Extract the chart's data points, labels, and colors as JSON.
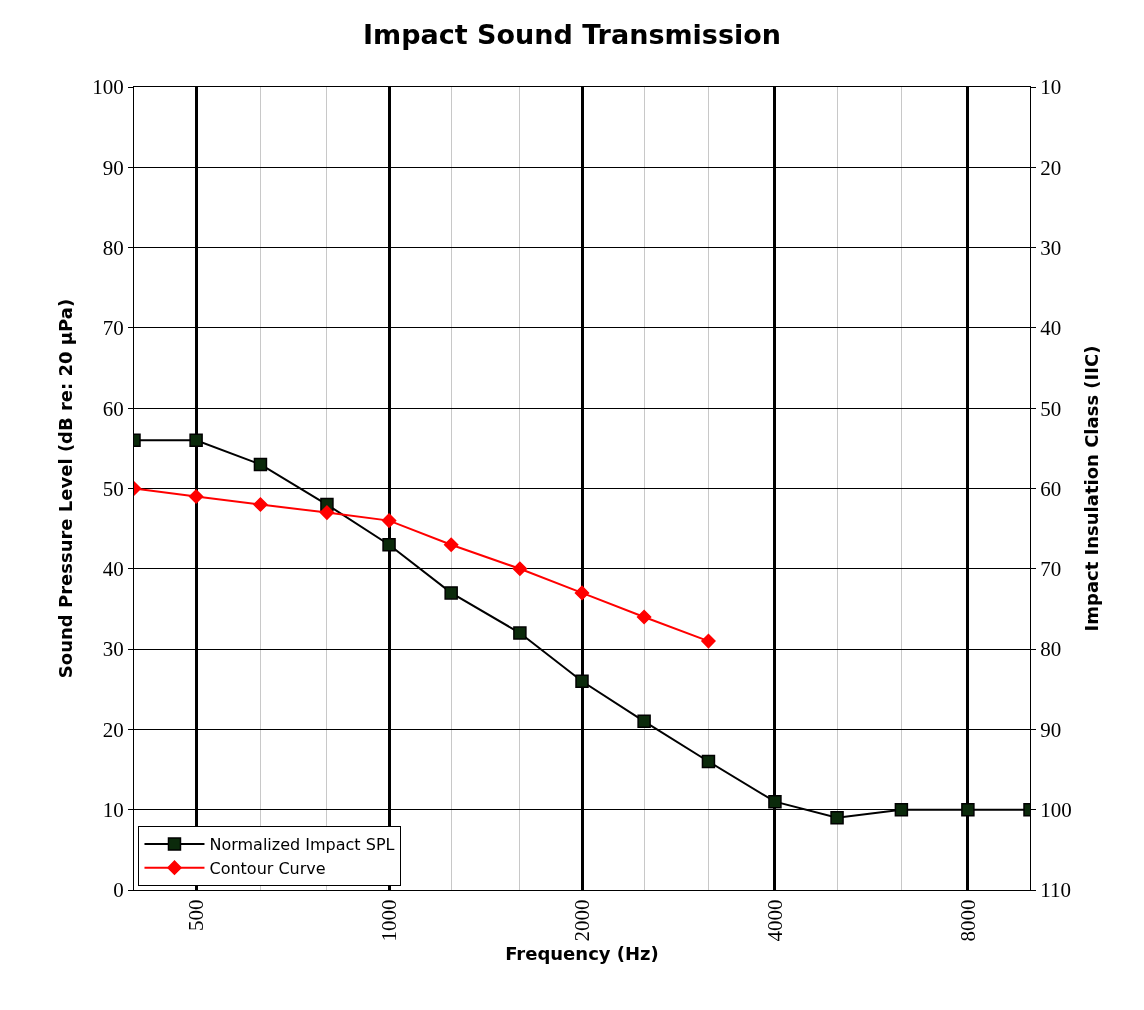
{
  "chart_data": {
    "type": "line",
    "title": "Impact Sound Transmission",
    "xlabel": "Frequency (Hz)",
    "ylabel": "Sound Pressure Level (dB re: 20 µPa)",
    "y2label": "Impact Insulation Class (IIC)",
    "log": "x",
    "x": [
      400,
      500,
      630,
      800,
      1000,
      1250,
      1600,
      2000,
      2500,
      3150,
      4000,
      5000,
      6300,
      8000,
      10000
    ],
    "series": [
      {
        "name": "Normalized Impact SPL",
        "color": "#000000",
        "marker": "square",
        "values": [
          56,
          56,
          53,
          48,
          43,
          37,
          32,
          26,
          21,
          16,
          11,
          9,
          10,
          10,
          10
        ]
      },
      {
        "name": "Contour Curve",
        "color": "#ff0000",
        "marker": "diamond",
        "values": [
          50,
          49,
          48,
          47,
          46,
          43,
          40,
          37,
          34,
          31,
          null,
          null,
          null,
          null,
          null
        ]
      }
    ],
    "xlim": [
      400,
      10000
    ],
    "xticks": [
      {
        "value": 400,
        "label": null
      },
      500,
      {
        "value": 630,
        "label": null
      },
      {
        "value": 800,
        "label": null
      },
      1000,
      {
        "value": 1250,
        "label": null
      },
      {
        "value": 1600,
        "label": null
      },
      2000,
      {
        "value": 2500,
        "label": null
      },
      {
        "value": 3150,
        "label": null
      },
      4000,
      {
        "value": 5000,
        "label": null
      },
      {
        "value": 6300,
        "label": null
      },
      8000,
      {
        "value": 10000,
        "label": null
      }
    ],
    "ylim": [
      0,
      100
    ],
    "yticks": [
      0,
      10,
      20,
      30,
      40,
      50,
      60,
      70,
      80,
      90,
      100
    ],
    "y2lim": [
      110,
      10
    ],
    "y2ticks": [
      10,
      20,
      30,
      40,
      50,
      60,
      70,
      80,
      90,
      100,
      110
    ],
    "grid": true,
    "legend": "bottom left",
    "line_style": "solid"
  }
}
